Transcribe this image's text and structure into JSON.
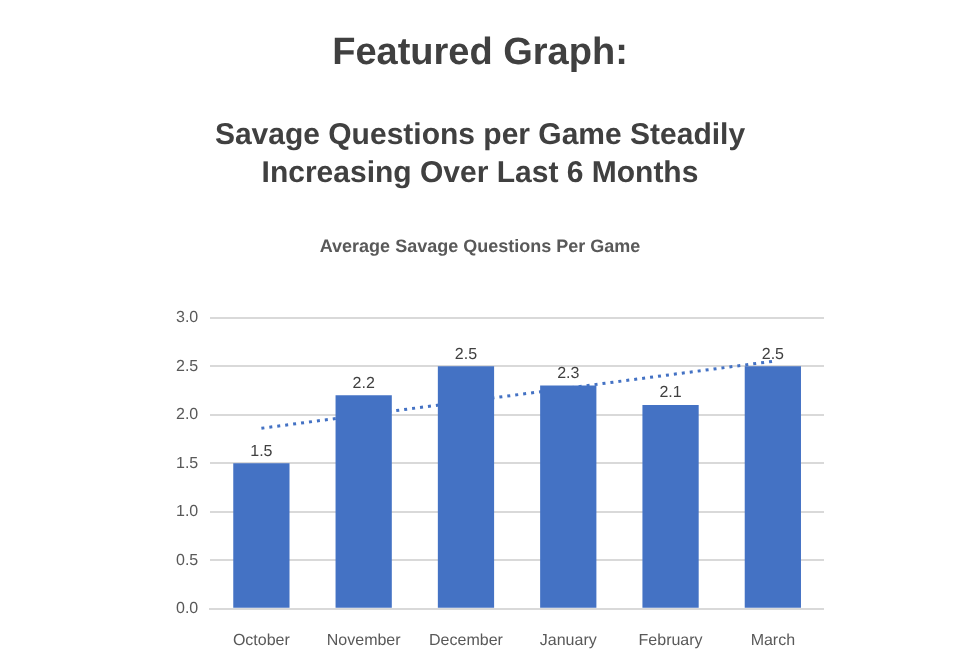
{
  "chart_data": {
    "type": "bar",
    "title": "Featured Graph:",
    "subtitle": "Savage Questions per Game Steadily Increasing Over Last 6 Months",
    "annotations": [
      "Average Savage Questions Per Game"
    ],
    "categories": [
      "October",
      "November",
      "December",
      "January",
      "February",
      "March"
    ],
    "series": [
      {
        "color": "#4472c4",
        "values": [
          1.5,
          2.2,
          2.5,
          2.3,
          2.1,
          2.5
        ],
        "value_labels": [
          "1.5",
          "2.2",
          "2.5",
          "2.3",
          "2.1",
          "2.5"
        ]
      },
      {
        "type": "line",
        "color": "#4472c4",
        "line_style": "dotted",
        "marker": "none",
        "x": [
          "October",
          "March"
        ],
        "values": [
          1.86,
          2.55
        ]
      }
    ],
    "ylim": [
      0,
      3
    ],
    "yticks": [
      {
        "value": 0,
        "label": "0.0"
      },
      {
        "value": 0.5,
        "label": "0.5"
      },
      {
        "value": 1,
        "label": "1.0"
      },
      {
        "value": 1.5,
        "label": "1.5"
      },
      {
        "value": 2,
        "label": "2.0"
      },
      {
        "value": 2.5,
        "label": "2.5"
      },
      {
        "value": 3,
        "label": "3.0"
      }
    ],
    "grid": "y",
    "legend": false
  }
}
